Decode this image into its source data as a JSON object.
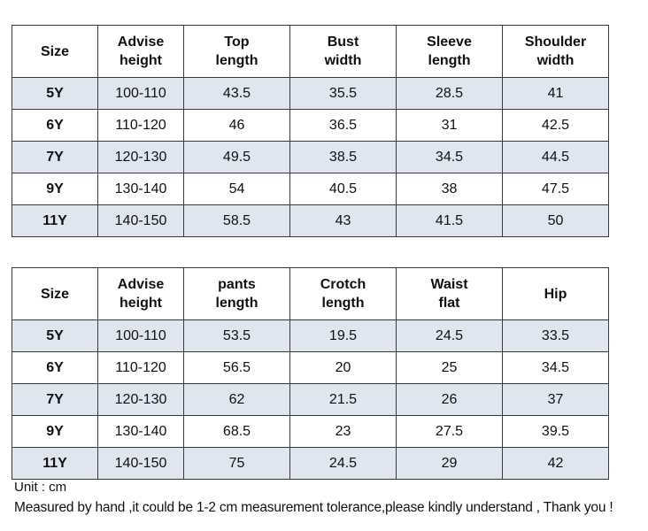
{
  "tables": [
    {
      "headers": [
        [
          "Size"
        ],
        [
          "Advise",
          "height"
        ],
        [
          "Top",
          "length"
        ],
        [
          "Bust",
          "width"
        ],
        [
          "Sleeve",
          "length"
        ],
        [
          "Shoulder",
          "width"
        ]
      ],
      "rows": [
        [
          "5Y",
          "100-110",
          "43.5",
          "35.5",
          "28.5",
          "41"
        ],
        [
          "6Y",
          "110-120",
          "46",
          "36.5",
          "31",
          "42.5"
        ],
        [
          "7Y",
          "120-130",
          "49.5",
          "38.5",
          "34.5",
          "44.5"
        ],
        [
          "9Y",
          "130-140",
          "54",
          "40.5",
          "38",
          "47.5"
        ],
        [
          "11Y",
          "140-150",
          "58.5",
          "43",
          "41.5",
          "50"
        ]
      ]
    },
    {
      "headers": [
        [
          "Size"
        ],
        [
          "Advise",
          "height"
        ],
        [
          "pants",
          "length"
        ],
        [
          "Crotch",
          "length"
        ],
        [
          "Waist",
          "flat"
        ],
        [
          "Hip"
        ]
      ],
      "rows": [
        [
          "5Y",
          "100-110",
          "53.5",
          "19.5",
          "24.5",
          "33.5"
        ],
        [
          "6Y",
          "110-120",
          "56.5",
          "20",
          "25",
          "34.5"
        ],
        [
          "7Y",
          "120-130",
          "62",
          "21.5",
          "26",
          "37"
        ],
        [
          "9Y",
          "130-140",
          "68.5",
          "23",
          "27.5",
          "39.5"
        ],
        [
          "11Y",
          "140-150",
          "75",
          "24.5",
          "29",
          "42"
        ]
      ]
    }
  ],
  "notes": {
    "unit": "Unit : cm",
    "measure": "Measured by hand ,it could be 1-2 cm measurement tolerance,please kindly understand , Thank you !"
  },
  "colors": {
    "shaded_row": "#dfe6ef",
    "border": "#3a3a3a"
  }
}
